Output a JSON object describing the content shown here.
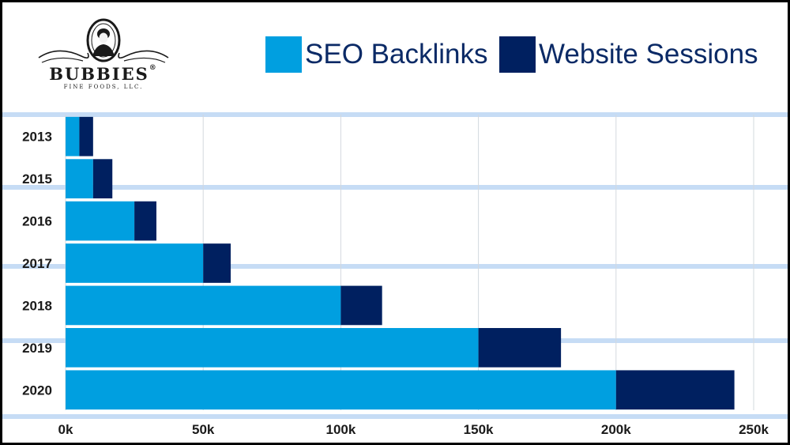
{
  "brand": {
    "name": "BUBBIES",
    "registered": "®",
    "tagline": "FINE FOODS, LLC."
  },
  "colors": {
    "backlinks": "#009fe0",
    "sessions": "#002060",
    "band": "#c6dcf5",
    "grid": "#d3d8de",
    "legend_text": "#0b2a66"
  },
  "chart_data": {
    "type": "bar",
    "orientation": "horizontal",
    "stacked": true,
    "categories": [
      "2013",
      "2015",
      "2016",
      "2017",
      "2018",
      "2019",
      "2020"
    ],
    "series": [
      {
        "name": "SEO Backlinks",
        "values": [
          5000,
          10000,
          25000,
          50000,
          100000,
          150000,
          200000
        ]
      },
      {
        "name": "Website Sessions",
        "values": [
          5000,
          7000,
          8000,
          10000,
          15000,
          30000,
          43000
        ]
      }
    ],
    "xlim": [
      0,
      250000
    ],
    "x_ticks": [
      0,
      50000,
      100000,
      150000,
      200000,
      250000
    ],
    "x_tick_labels": [
      "0k",
      "50k",
      "100k",
      "150k",
      "200k",
      "250k"
    ],
    "grid": "vertical",
    "legend_position": "top-right",
    "title": "",
    "xlabel": "",
    "ylabel": ""
  }
}
